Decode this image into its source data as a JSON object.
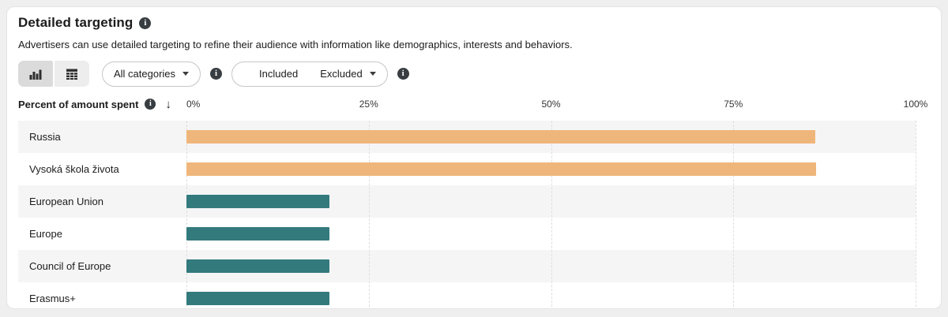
{
  "panel": {
    "title": "Detailed targeting",
    "description": "Advertisers can use detailed targeting to refine their audience with information like demographics, interests and behaviors."
  },
  "toolbar": {
    "view_toggle": {
      "chart_selected": true,
      "table_selected": false
    },
    "category_filter_label": "All categories",
    "legend_filter": {
      "included_label": "Included",
      "excluded_label": "Excluded"
    }
  },
  "chart_data": {
    "type": "bar",
    "orientation": "horizontal",
    "title": "Percent of amount spent",
    "sort_direction": "descending",
    "x_ticks": [
      "0%",
      "25%",
      "50%",
      "75%",
      "100%"
    ],
    "xlim": [
      0,
      100
    ],
    "grid": true,
    "legend": [
      {
        "label": "Included",
        "status": "included",
        "color": "#337a7d"
      },
      {
        "label": "Excluded",
        "status": "excluded",
        "color": "#efb67b"
      }
    ],
    "colors": {
      "included": "#337a7d",
      "excluded": "#efb67b"
    },
    "rows": [
      {
        "label": "Russia",
        "value": 86.2,
        "status": "excluded"
      },
      {
        "label": "Vysoká škola života",
        "value": 86.4,
        "status": "excluded"
      },
      {
        "label": "European Union",
        "value": 19.6,
        "status": "included"
      },
      {
        "label": "Europe",
        "value": 19.6,
        "status": "included"
      },
      {
        "label": "Council of Europe",
        "value": 19.6,
        "status": "included"
      },
      {
        "label": "Erasmus+",
        "value": 19.6,
        "status": "included"
      }
    ]
  }
}
